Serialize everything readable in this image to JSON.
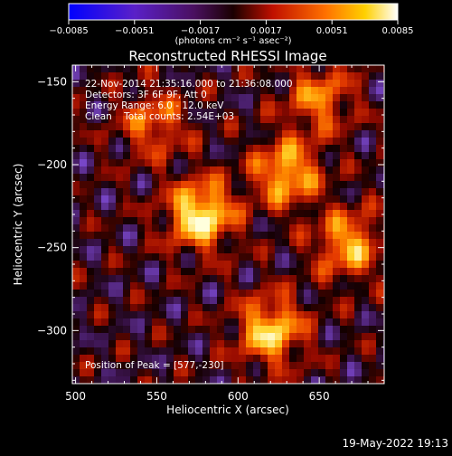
{
  "chart_data": {
    "type": "heatmap",
    "title": "Reconstructed RHESSI Image",
    "xlabel": "Heliocentric X (arcsec)",
    "ylabel": "Heliocentric Y (arcsec)",
    "xlim": [
      498,
      690
    ],
    "ylim": [
      -332,
      -140
    ],
    "xticks": [
      500,
      550,
      600,
      650
    ],
    "yticks": [
      -150,
      -200,
      -250,
      -300
    ],
    "xtick_labels": [
      "500",
      "550",
      "600",
      "650"
    ],
    "ytick_labels": [
      "−150",
      "−200",
      "−250",
      "−300"
    ],
    "colorbar": {
      "range": [
        -0.0085,
        0.0085
      ],
      "ticks": [
        -0.0085,
        -0.0051,
        -0.0017,
        0.0017,
        0.0051,
        0.0085
      ],
      "tick_labels": [
        "−0.0085",
        "−0.0051",
        "−0.0017",
        "0.0017",
        "0.0051",
        "0.0085"
      ],
      "unit_label": "(photons cm⁻² s⁻¹ asec⁻²)"
    },
    "peak": [
      577,
      -230
    ],
    "hotspots": [
      {
        "x": 577,
        "y": -230,
        "value": 0.0085
      },
      {
        "x": 620,
        "y": -300,
        "value": 0.0072
      },
      {
        "x": 630,
        "y": -205,
        "value": 0.0068
      },
      {
        "x": 668,
        "y": -248,
        "value": 0.0062
      },
      {
        "x": 548,
        "y": -175,
        "value": 0.0045
      },
      {
        "x": 650,
        "y": -160,
        "value": 0.005
      }
    ],
    "grid": false
  },
  "annotations": {
    "time_line": "22-Nov-2014 21:35:16.000 to 21:36:08.000",
    "detectors_line": "Detectors: 3F 6F 9F, Att 0",
    "energy_line": "Energy Range: 6.0 - 12.0 keV",
    "clean_line": "Clean    Total counts: 2.54E+03",
    "peak_line": "Position of Peak = [577,-230]"
  },
  "footer": {
    "date": "19-May-2022 19:13"
  }
}
